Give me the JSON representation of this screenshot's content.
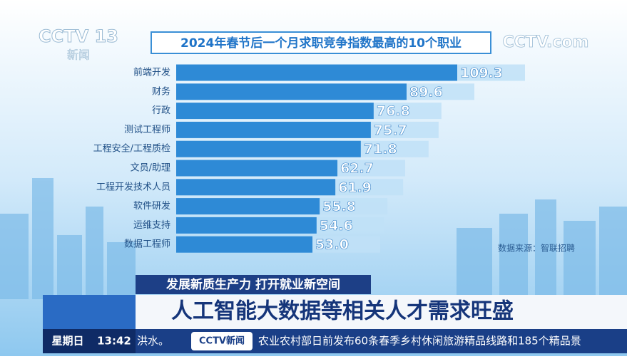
{
  "logo": {
    "channel": "CCTV 13",
    "name": "新闻"
  },
  "watermark": "CCTV.com",
  "chart_data": {
    "type": "hbar",
    "title": "2024年春节后一个月求职竞争指数最高的10个职业",
    "categories": [
      "前端开发",
      "财务",
      "行政",
      "测试工程师",
      "工程安全/工程质检",
      "文员/助理",
      "工程开发技术人员",
      "软件研发",
      "运维支持",
      "数据工程师"
    ],
    "values": [
      109.3,
      89.6,
      76.8,
      75.7,
      71.8,
      62.7,
      61.9,
      55.8,
      54.6,
      53.0
    ],
    "value_labels": [
      "109.3",
      "89.6",
      "76.8",
      "75.7",
      "71.8",
      "62.7",
      "61.9",
      "55.8",
      "54.6",
      "53.0"
    ],
    "color": "#2e8ad6",
    "source": "数据来源：智联招聘"
  },
  "lower_third": {
    "subtitle": "发展新质生产力 打开就业新空间",
    "headline": "人工智能大数据等相关人才需求旺盛"
  },
  "ticker": {
    "day": "星期日",
    "time": "13:42",
    "previous": "洪水。",
    "brand": "CCTV新闻",
    "text": "农业农村部日前发布60条春季乡村休闲旅游精品线路和185个精品景"
  }
}
